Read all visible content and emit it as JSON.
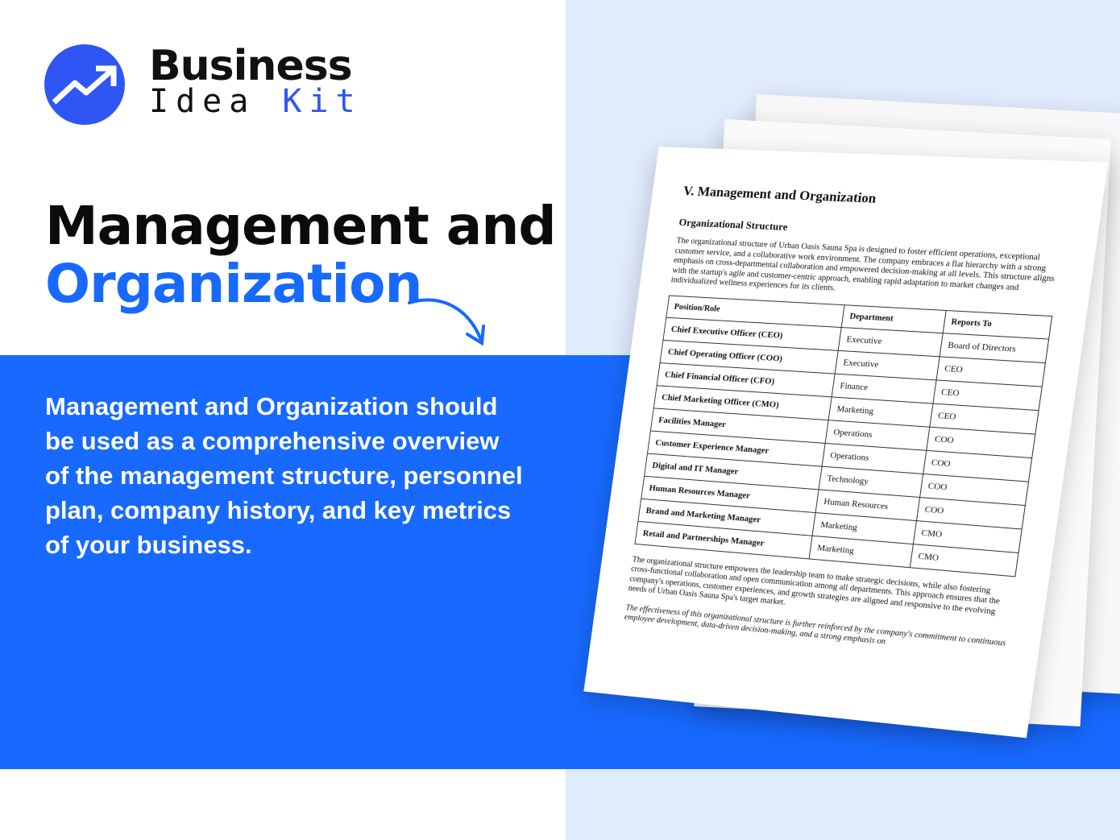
{
  "logo": {
    "line1": "Business",
    "line2a": "Idea ",
    "line2b": "Kit",
    "color": "#2f55f5"
  },
  "headline": {
    "line1": "Management and",
    "line2": "Organization"
  },
  "description": "Management and Organization should be used as a comprehensive overview of the management structure, personnel plan, company history, and key metrics of your business.",
  "colors": {
    "accent": "#1769ff",
    "right_bg": "#e0ebfc"
  },
  "document": {
    "title": "V. Management and Organization",
    "subtitle": "Organizational Structure",
    "intro": "The organizational structure of Urban Oasis Sauna Spa is designed to foster efficient operations, exceptional customer service, and a collaborative work environment. The company embraces a flat hierarchy with a strong emphasis on cross-departmental collaboration and empowered decision-making at all levels. This structure aligns with the startup's agile and customer-centric approach, enabling rapid adaptation to market changes and individualized wellness experiences for its clients.",
    "headers": [
      "Position/Role",
      "Department",
      "Reports To"
    ],
    "rows": [
      [
        "Chief Executive Officer (CEO)",
        "Executive",
        "Board of Directors"
      ],
      [
        "Chief Operating Officer (COO)",
        "Executive",
        "CEO"
      ],
      [
        "Chief Financial Officer (CFO)",
        "Finance",
        "CEO"
      ],
      [
        "Chief Marketing Officer (CMO)",
        "Marketing",
        "CEO"
      ],
      [
        "Facilities Manager",
        "Operations",
        "COO"
      ],
      [
        "Customer Experience Manager",
        "Operations",
        "COO"
      ],
      [
        "Digital and IT Manager",
        "Technology",
        "COO"
      ],
      [
        "Human Resources Manager",
        "Human Resources",
        "COO"
      ],
      [
        "Brand and Marketing Manager",
        "Marketing",
        "CMO"
      ],
      [
        "Retail and Partnerships Manager",
        "Marketing",
        "CMO"
      ]
    ],
    "para2": "The organizational structure empowers the leadership team to make strategic decisions, while also fostering cross-functional collaboration and open communication among all departments. This approach ensures that the company's operations, customer experiences, and growth strategies are aligned and responsive to the evolving needs of Urban Oasis Sauna Spa's target market.",
    "para3": "The effectiveness of this organizational structure is further reinforced by the company's commitment to continuous employee development, data-driven decision-making, and a strong emphasis on"
  }
}
